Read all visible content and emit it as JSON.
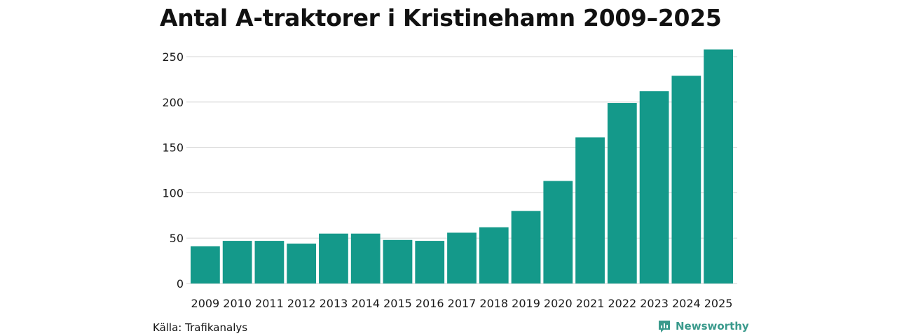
{
  "title": "Antal A-traktorer i Kristinehamn 2009–2025",
  "source": "Källa: Trafikanalys",
  "brand": "Newsworthy",
  "colors": {
    "bar": "#14998a",
    "grid": "#dcdcdc",
    "brand": "#3a9a8c"
  },
  "chart_data": {
    "type": "bar",
    "title": "Antal A-traktorer i Kristinehamn 2009–2025",
    "xlabel": "",
    "ylabel": "",
    "ylim": [
      0,
      260
    ],
    "yticks": [
      0,
      50,
      100,
      150,
      200,
      250
    ],
    "grid": true,
    "categories": [
      "2009",
      "2010",
      "2011",
      "2012",
      "2013",
      "2014",
      "2015",
      "2016",
      "2017",
      "2018",
      "2019",
      "2020",
      "2021",
      "2022",
      "2023",
      "2024",
      "2025"
    ],
    "values": [
      41,
      47,
      47,
      44,
      55,
      55,
      48,
      47,
      56,
      62,
      80,
      113,
      161,
      199,
      212,
      229,
      258
    ]
  }
}
